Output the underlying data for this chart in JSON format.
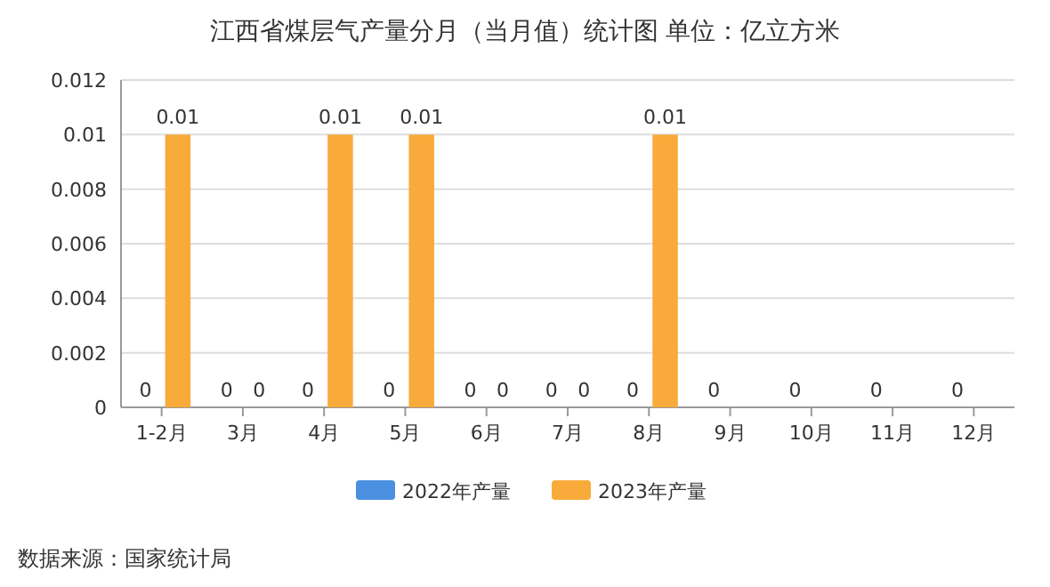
{
  "chart_data": {
    "type": "bar",
    "title": "江西省煤层气产量分月（当月值）统计图 单位：亿立方米",
    "categories": [
      "1-2月",
      "3月",
      "4月",
      "5月",
      "6月",
      "7月",
      "8月",
      "9月",
      "10月",
      "11月",
      "12月"
    ],
    "series": [
      {
        "name": "2022年产量",
        "color": "#4a8fe0",
        "values": [
          0,
          0,
          0,
          0,
          0,
          0,
          0,
          0,
          0,
          0,
          0
        ]
      },
      {
        "name": "2023年产量",
        "color": "#f8ab3a",
        "values": [
          0.01,
          0,
          0.01,
          0.01,
          0,
          0,
          0.01,
          null,
          null,
          null,
          null
        ]
      }
    ],
    "ylim": [
      0,
      0.012
    ],
    "yticks": [
      0,
      0.002,
      0.004,
      0.006,
      0.008,
      0.01,
      0.012
    ],
    "grid": "y",
    "legend": "bottom",
    "data_labels": true,
    "annotations": [
      "数据来源：国家统计局"
    ]
  }
}
